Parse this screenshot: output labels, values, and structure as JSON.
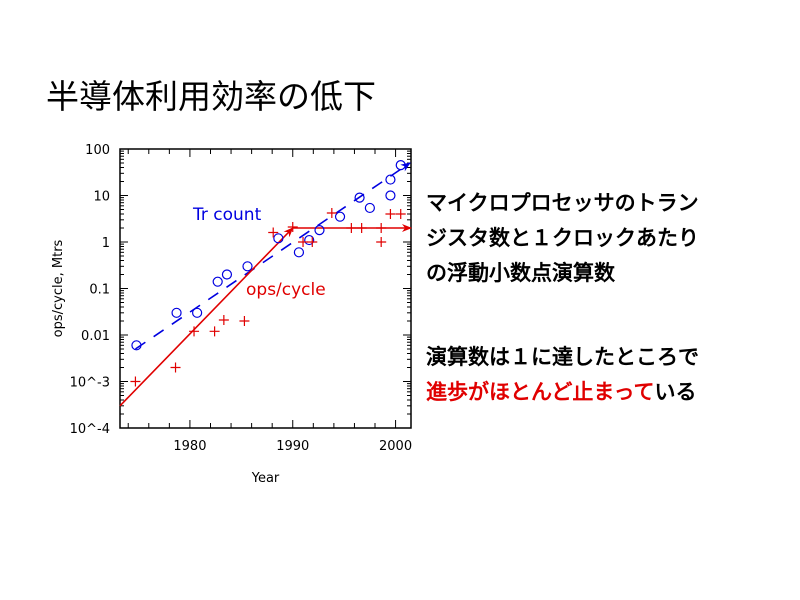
{
  "slide": {
    "title": "半導体利用効率の低下",
    "paragraph1": "マイクロプロセッサのトランジスタ数と１クロックあたりの浮動小数点演算数",
    "paragraph2_black1": "演算数は１に達したところで",
    "paragraph2_red": "進歩がほとんど止まって",
    "paragraph2_black2": "いる",
    "highlight_color": "#e00000"
  },
  "chart_data": {
    "type": "scatter",
    "title": "",
    "xlabel": "Year",
    "ylabel": "ops/cycle, Mtrs",
    "xlim": [
      1973.2,
      2001.5
    ],
    "ylim": [
      0.0001,
      100
    ],
    "yscale": "log",
    "grid": false,
    "x_ticks": [
      "1980",
      "1990",
      "2000"
    ],
    "x_tick_values": [
      1980,
      1990,
      2000
    ],
    "y_ticks": [
      "100",
      "10",
      "1",
      "0.1",
      "0.01",
      "10^-3",
      "10^-4"
    ],
    "y_tick_values": [
      100,
      10,
      1,
      0.1,
      0.01,
      0.001,
      0.0001
    ],
    "series": [
      {
        "name": "Tr count",
        "color": "#0000e0",
        "marker": "circle",
        "trend": {
          "style": "dashed-arrow",
          "from": [
            1974.7,
            0.005
          ],
          "to": [
            2001.4,
            50
          ]
        },
        "points": [
          [
            1974.8,
            0.006
          ],
          [
            1978.7,
            0.03
          ],
          [
            1980.7,
            0.03
          ],
          [
            1982.7,
            0.14
          ],
          [
            1983.6,
            0.2
          ],
          [
            1985.6,
            0.3
          ],
          [
            1988.6,
            1.2
          ],
          [
            1990.6,
            0.6
          ],
          [
            1991.6,
            1.1
          ],
          [
            1992.6,
            1.8
          ],
          [
            1994.6,
            3.5
          ],
          [
            1996.5,
            9
          ],
          [
            1997.5,
            5.4
          ],
          [
            1999.5,
            22
          ],
          [
            1999.5,
            10
          ],
          [
            2000.5,
            45
          ]
        ]
      },
      {
        "name": "ops/cycle",
        "color": "#e00000",
        "marker": "plus",
        "trend": {
          "style": "solid-arrows",
          "segments": [
            [
              [
                1973.2,
                0.0003
              ],
              [
                1990,
                2
              ]
            ],
            [
              [
                1990,
                2
              ],
              [
                2001.5,
                2
              ]
            ]
          ]
        },
        "points": [
          [
            1974.7,
            0.001
          ],
          [
            1978.6,
            0.002
          ],
          [
            1980.4,
            0.012
          ],
          [
            1982.4,
            0.012
          ],
          [
            1983.3,
            0.021
          ],
          [
            1985.3,
            0.02
          ],
          [
            1988.1,
            1.6
          ],
          [
            1990,
            2.1
          ],
          [
            1991,
            1
          ],
          [
            1991.9,
            1
          ],
          [
            1993.8,
            4.2
          ],
          [
            1995.7,
            2
          ],
          [
            1996.7,
            2
          ],
          [
            1998.6,
            2
          ],
          [
            1998.6,
            1
          ],
          [
            1999.5,
            4
          ],
          [
            2000.5,
            4
          ]
        ]
      }
    ]
  }
}
